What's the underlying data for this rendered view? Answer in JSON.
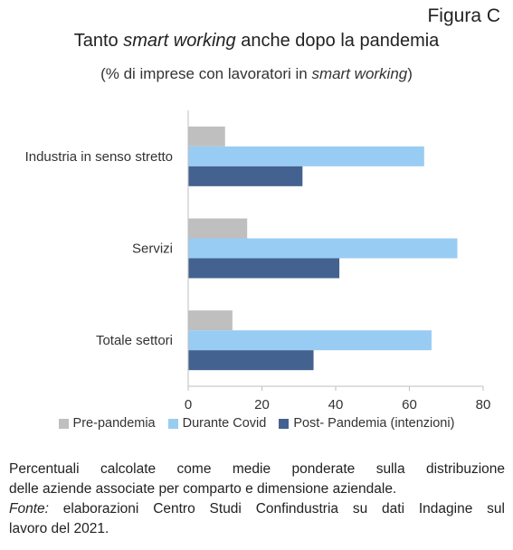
{
  "figure_label": "Figura C",
  "title_pre": "Tanto ",
  "title_em": "smart working",
  "title_post": " anche dopo la pandemia",
  "subtitle_pre": "(% di imprese con  lavoratori in ",
  "subtitle_em": "smart working",
  "subtitle_post": ")",
  "notes": {
    "line1": "Percentuali calcolate come medie ponderate sulla distribuzione",
    "line2": "delle aziende associate  per comparto e dimensione aziendale.",
    "fonte_label": "Fonte:",
    "fonte_text": " elaborazioni Centro Studi Confindustria su dati Indagine sul",
    "line4": "lavoro del 2021."
  },
  "chart_data": {
    "type": "bar",
    "orientation": "horizontal",
    "categories": [
      "Industria in senso stretto",
      "Servizi",
      "Totale settori"
    ],
    "series": [
      {
        "name": "Pre-pandemia",
        "color": "#bfbfbf",
        "values": [
          10,
          16,
          12
        ]
      },
      {
        "name": "Durante Covid",
        "color": "#99ccf2",
        "values": [
          64,
          73,
          66
        ]
      },
      {
        "name": "Post- Pandemia (intenzioni)",
        "color": "#44628f",
        "values": [
          31,
          41,
          34
        ]
      }
    ],
    "xlim": [
      0,
      80
    ],
    "xticks": [
      0,
      20,
      40,
      60,
      80
    ],
    "grid": false,
    "legend_position": "bottom"
  }
}
